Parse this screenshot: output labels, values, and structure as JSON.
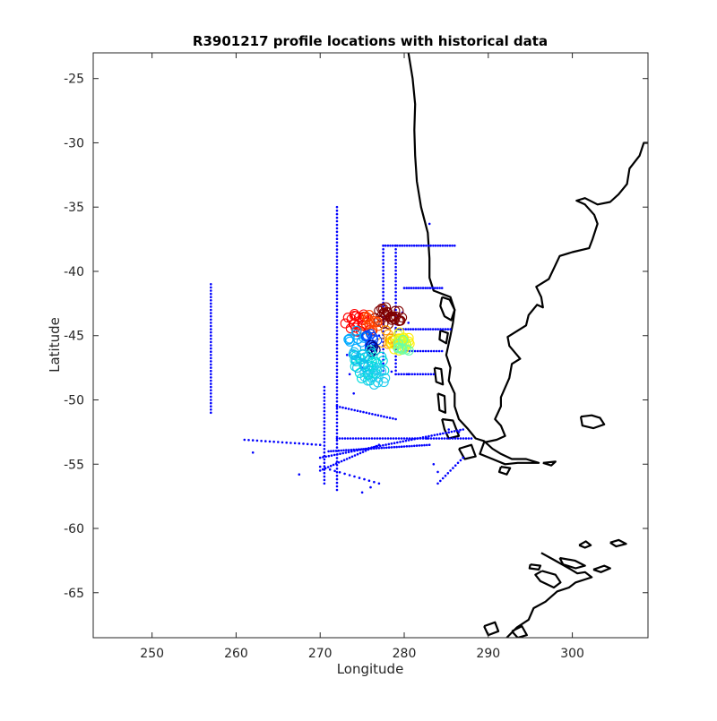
{
  "chart_data": {
    "type": "scatter",
    "title": "R3901217 profile locations with historical data",
    "xlabel": "Longitude",
    "ylabel": "Latitude",
    "xlim": [
      243,
      309
    ],
    "ylim": [
      -68.5,
      -23
    ],
    "xticks": [
      250,
      260,
      270,
      280,
      290,
      300
    ],
    "yticks": [
      -25,
      -30,
      -35,
      -40,
      -45,
      -50,
      -55,
      -60,
      -65
    ],
    "grid": false,
    "legend": "none",
    "colors": {
      "historical": "#0000ff",
      "coast": "#000000"
    },
    "historical_tracks": [
      {
        "from": [
          257.0,
          -41.0
        ],
        "to": [
          257.0,
          -51.0
        ],
        "n": 40
      },
      {
        "from": [
          272.0,
          -35.0
        ],
        "to": [
          272.0,
          -57.0
        ],
        "n": 80
      },
      {
        "from": [
          277.5,
          -38.0
        ],
        "to": [
          277.5,
          -48.0
        ],
        "n": 36
      },
      {
        "from": [
          279.0,
          -38.0
        ],
        "to": [
          279.0,
          -48.0
        ],
        "n": 36
      },
      {
        "from": [
          277.5,
          -38.0
        ],
        "to": [
          286.0,
          -38.0
        ],
        "n": 30
      },
      {
        "from": [
          280.0,
          -41.3
        ],
        "to": [
          284.5,
          -41.3
        ],
        "n": 16
      },
      {
        "from": [
          279.0,
          -44.5
        ],
        "to": [
          285.5,
          -44.5
        ],
        "n": 22
      },
      {
        "from": [
          280.0,
          -46.2
        ],
        "to": [
          284.5,
          -46.2
        ],
        "n": 14
      },
      {
        "from": [
          279.0,
          -48.0
        ],
        "to": [
          283.5,
          -48.0
        ],
        "n": 14
      },
      {
        "from": [
          272.0,
          -50.5
        ],
        "to": [
          279.0,
          -51.5
        ],
        "n": 20
      },
      {
        "from": [
          272.0,
          -53.0
        ],
        "to": [
          288.0,
          -53.0
        ],
        "n": 50
      },
      {
        "from": [
          270.0,
          -54.5
        ],
        "to": [
          287.0,
          -52.3
        ],
        "n": 50
      },
      {
        "from": [
          271.0,
          -54.0
        ],
        "to": [
          283.0,
          -53.5
        ],
        "n": 40
      },
      {
        "from": [
          270.0,
          -55.5
        ],
        "to": [
          277.0,
          -53.5
        ],
        "n": 22
      },
      {
        "from": [
          270.5,
          -49.0
        ],
        "to": [
          270.5,
          -56.5
        ],
        "n": 28
      },
      {
        "from": [
          261.0,
          -53.1
        ],
        "to": [
          270.0,
          -53.5
        ],
        "n": 18
      },
      {
        "from": [
          270.0,
          -55.2
        ],
        "to": [
          277.0,
          -56.5
        ],
        "n": 12
      },
      {
        "from": [
          284.0,
          -56.5
        ],
        "to": [
          287.0,
          -54.5
        ],
        "n": 10
      }
    ],
    "historical_points": [
      [
        283,
        -36.3
      ],
      [
        262,
        -54.1
      ],
      [
        267.5,
        -55.8
      ],
      [
        275,
        -57.2
      ],
      [
        276,
        -56.8
      ],
      [
        283.5,
        -55.0
      ],
      [
        284,
        -55.6
      ],
      [
        274,
        -49.5
      ],
      [
        273.5,
        -48.0
      ],
      [
        275,
        -47.5
      ],
      [
        277,
        -45.0
      ],
      [
        273.2,
        -46.5
      ],
      [
        274.5,
        -45.0
      ],
      [
        280.5,
        -48.0
      ],
      [
        278.5,
        -47.8
      ],
      [
        282.7,
        -53.0
      ],
      [
        285.3,
        -52.3
      ],
      [
        286.5,
        -52.5
      ],
      [
        279.8,
        -43.2
      ],
      [
        280.5,
        -44.0
      ]
    ],
    "profile_clusters": [
      {
        "color": "#7f0000",
        "center": [
          278.0,
          -43.5
        ],
        "spread": [
          1.8,
          0.8
        ],
        "n": 28
      },
      {
        "color": "#ff0000",
        "center": [
          274.5,
          -44.0
        ],
        "spread": [
          1.8,
          0.9
        ],
        "n": 22
      },
      {
        "color": "#ff4400",
        "center": [
          276.0,
          -44.0
        ],
        "spread": [
          1.2,
          0.7
        ],
        "n": 14
      },
      {
        "color": "#ff9900",
        "center": [
          278.0,
          -45.0
        ],
        "spread": [
          1.0,
          0.8
        ],
        "n": 10
      },
      {
        "color": "#ffee00",
        "center": [
          279.5,
          -45.6
        ],
        "spread": [
          1.2,
          1.0
        ],
        "n": 16
      },
      {
        "color": "#ccff33",
        "center": [
          279.8,
          -45.2
        ],
        "spread": [
          0.8,
          0.8
        ],
        "n": 8
      },
      {
        "color": "#66ffaa",
        "center": [
          280.0,
          -45.8
        ],
        "spread": [
          0.8,
          1.0
        ],
        "n": 8
      },
      {
        "color": "#00aaff",
        "center": [
          274.5,
          -45.3
        ],
        "spread": [
          1.2,
          0.8
        ],
        "n": 12
      },
      {
        "color": "#0044ff",
        "center": [
          276.0,
          -45.5
        ],
        "spread": [
          0.8,
          0.7
        ],
        "n": 10
      },
      {
        "color": "#00007f",
        "center": [
          276.3,
          -46.0
        ],
        "spread": [
          0.4,
          0.6
        ],
        "n": 5
      },
      {
        "color": "#00dddd",
        "center": [
          275.8,
          -47.2
        ],
        "spread": [
          2.0,
          1.3
        ],
        "n": 30
      },
      {
        "color": "#22ccee",
        "center": [
          276.5,
          -48.0
        ],
        "spread": [
          1.5,
          0.9
        ],
        "n": 14
      },
      {
        "color": "#11bbee",
        "center": [
          274.5,
          -47.0
        ],
        "spread": [
          1.0,
          1.0
        ],
        "n": 10
      }
    ],
    "coastlines": [
      [
        [
          280.5,
          -23
        ],
        [
          281,
          -25
        ],
        [
          281.3,
          -27
        ],
        [
          281.2,
          -29
        ],
        [
          281.3,
          -31
        ],
        [
          281.5,
          -33
        ],
        [
          282,
          -35
        ],
        [
          282.8,
          -37
        ],
        [
          283,
          -39
        ],
        [
          283,
          -40.5
        ],
        [
          283.5,
          -41.5
        ],
        [
          285.5,
          -42
        ],
        [
          286,
          -43
        ],
        [
          285.8,
          -44
        ],
        [
          285.5,
          -45
        ],
        [
          285,
          -46.5
        ],
        [
          285.5,
          -47.5
        ],
        [
          285.3,
          -48.5
        ],
        [
          286,
          -49.5
        ],
        [
          286,
          -50.5
        ],
        [
          286.5,
          -51.5
        ],
        [
          287.5,
          -52.2
        ],
        [
          288.5,
          -53
        ],
        [
          289.5,
          -53.2
        ],
        [
          290.5,
          -53.8
        ],
        [
          291.5,
          -54.2
        ],
        [
          292.8,
          -54.6
        ],
        [
          294.5,
          -54.6
        ],
        [
          296,
          -54.9
        ],
        [
          293.5,
          -54.9
        ],
        [
          292,
          -55
        ],
        [
          290.5,
          -54.6
        ],
        [
          289,
          -54.2
        ],
        [
          289.5,
          -53.3
        ],
        [
          291,
          -53.1
        ],
        [
          292,
          -52.8
        ],
        [
          291.5,
          -52.0
        ],
        [
          290.8,
          -51.5
        ],
        [
          291.5,
          -50.5
        ],
        [
          291.5,
          -49.8
        ],
        [
          292.5,
          -48.3
        ],
        [
          292.8,
          -47.2
        ],
        [
          293.8,
          -46.8
        ],
        [
          292.5,
          -45.8
        ],
        [
          292.3,
          -45.1
        ],
        [
          294.5,
          -44.2
        ],
        [
          294.8,
          -43.4
        ],
        [
          295.8,
          -42.6
        ],
        [
          296.5,
          -42.8
        ],
        [
          296.3,
          -42
        ],
        [
          295.7,
          -41.2
        ],
        [
          297.2,
          -40.6
        ],
        [
          298,
          -39.5
        ],
        [
          298.5,
          -38.8
        ],
        [
          300,
          -38.5
        ],
        [
          302,
          -38.2
        ],
        [
          302.4,
          -37.5
        ],
        [
          303,
          -36.3
        ],
        [
          302.6,
          -35.6
        ],
        [
          301.5,
          -34.8
        ],
        [
          300.5,
          -34.5
        ],
        [
          301.5,
          -34.3
        ],
        [
          303,
          -34.8
        ],
        [
          304.5,
          -34.6
        ],
        [
          305.5,
          -34.0
        ],
        [
          306.5,
          -33.2
        ],
        [
          306.8,
          -32.0
        ],
        [
          308,
          -31.0
        ],
        [
          308.5,
          -30.0
        ],
        [
          309,
          -30
        ]
      ],
      [
        [
          284.5,
          -42
        ],
        [
          285.4,
          -42.2
        ],
        [
          286,
          -43
        ],
        [
          285.6,
          -43.8
        ],
        [
          284.8,
          -43.5
        ],
        [
          284.3,
          -42.7
        ],
        [
          284.5,
          -42
        ]
      ],
      [
        [
          284.3,
          -44.6
        ],
        [
          285.2,
          -44.8
        ],
        [
          285.0,
          -45.6
        ],
        [
          284.2,
          -45.3
        ],
        [
          284.3,
          -44.6
        ]
      ],
      [
        [
          283.6,
          -47.5
        ],
        [
          284.4,
          -47.6
        ],
        [
          284.6,
          -48.8
        ],
        [
          283.8,
          -48.6
        ],
        [
          283.6,
          -47.5
        ]
      ],
      [
        [
          284,
          -49.5
        ],
        [
          284.8,
          -49.7
        ],
        [
          284.9,
          -51
        ],
        [
          284.2,
          -50.8
        ],
        [
          284,
          -49.5
        ]
      ],
      [
        [
          284.5,
          -51.5
        ],
        [
          285.8,
          -51.6
        ],
        [
          286.5,
          -52.8
        ],
        [
          285.3,
          -53
        ],
        [
          284.8,
          -52.3
        ],
        [
          284.5,
          -51.5
        ]
      ],
      [
        [
          286.5,
          -53.8
        ],
        [
          288,
          -53.5
        ],
        [
          288.5,
          -54.4
        ],
        [
          287.2,
          -54.6
        ],
        [
          286.5,
          -53.8
        ]
      ],
      [
        [
          291.5,
          -55.2
        ],
        [
          292.6,
          -55.3
        ],
        [
          292.2,
          -55.8
        ],
        [
          291.3,
          -55.6
        ],
        [
          291.5,
          -55.2
        ]
      ],
      [
        [
          296.5,
          -54.9
        ],
        [
          298,
          -54.8
        ],
        [
          297.5,
          -55.1
        ],
        [
          296.5,
          -54.9
        ]
      ],
      [
        [
          301,
          -51.3
        ],
        [
          302.3,
          -51.2
        ],
        [
          303.3,
          -51.4
        ],
        [
          303.8,
          -51.9
        ],
        [
          302.5,
          -52.2
        ],
        [
          301.2,
          -52.0
        ],
        [
          301,
          -51.3
        ]
      ],
      [
        [
          296.3,
          -61.9
        ],
        [
          297.7,
          -62.4
        ],
        [
          299.6,
          -63.1
        ],
        [
          300.6,
          -63.5
        ],
        [
          301.5,
          -63.4
        ],
        [
          302.3,
          -63.8
        ],
        [
          300.4,
          -64.2
        ],
        [
          299.6,
          -64.6
        ],
        [
          298.2,
          -64.9
        ],
        [
          296.8,
          -65.7
        ],
        [
          295.4,
          -66.2
        ],
        [
          294.8,
          -67.1
        ],
        [
          293.4,
          -67.7
        ],
        [
          292.2,
          -68.5
        ]
      ],
      [
        [
          296.4,
          -63.3
        ],
        [
          298.0,
          -63.6
        ],
        [
          298.6,
          -64.2
        ],
        [
          297.8,
          -64.6
        ],
        [
          296.2,
          -64.1
        ],
        [
          295.6,
          -63.6
        ],
        [
          296.4,
          -63.3
        ]
      ],
      [
        [
          289.5,
          -67.6
        ],
        [
          290.8,
          -67.3
        ],
        [
          291.2,
          -68.0
        ],
        [
          290.0,
          -68.3
        ],
        [
          289.5,
          -67.6
        ]
      ],
      [
        [
          298.5,
          -62.3
        ],
        [
          300.3,
          -62.5
        ],
        [
          301.5,
          -62.9
        ],
        [
          300.4,
          -63.1
        ],
        [
          298.9,
          -62.8
        ],
        [
          298.5,
          -62.3
        ]
      ],
      [
        [
          295.0,
          -62.8
        ],
        [
          296.2,
          -62.9
        ],
        [
          296.0,
          -63.2
        ],
        [
          294.9,
          -63.1
        ],
        [
          295.0,
          -62.8
        ]
      ],
      [
        [
          300.8,
          -61.3
        ],
        [
          301.6,
          -61.0
        ],
        [
          302.2,
          -61.3
        ],
        [
          301.5,
          -61.5
        ],
        [
          300.8,
          -61.3
        ]
      ],
      [
        [
          302.5,
          -63.2
        ],
        [
          303.8,
          -62.9
        ],
        [
          304.5,
          -63.1
        ],
        [
          303.4,
          -63.4
        ],
        [
          302.5,
          -63.2
        ]
      ],
      [
        [
          304.5,
          -61.1
        ],
        [
          305.5,
          -60.9
        ],
        [
          306.4,
          -61.2
        ],
        [
          305.2,
          -61.4
        ],
        [
          304.5,
          -61.1
        ]
      ],
      [
        [
          292.8,
          -68.0
        ],
        [
          294.0,
          -67.6
        ],
        [
          294.6,
          -68.3
        ],
        [
          293.5,
          -68.5
        ],
        [
          292.8,
          -68.0
        ]
      ]
    ]
  }
}
